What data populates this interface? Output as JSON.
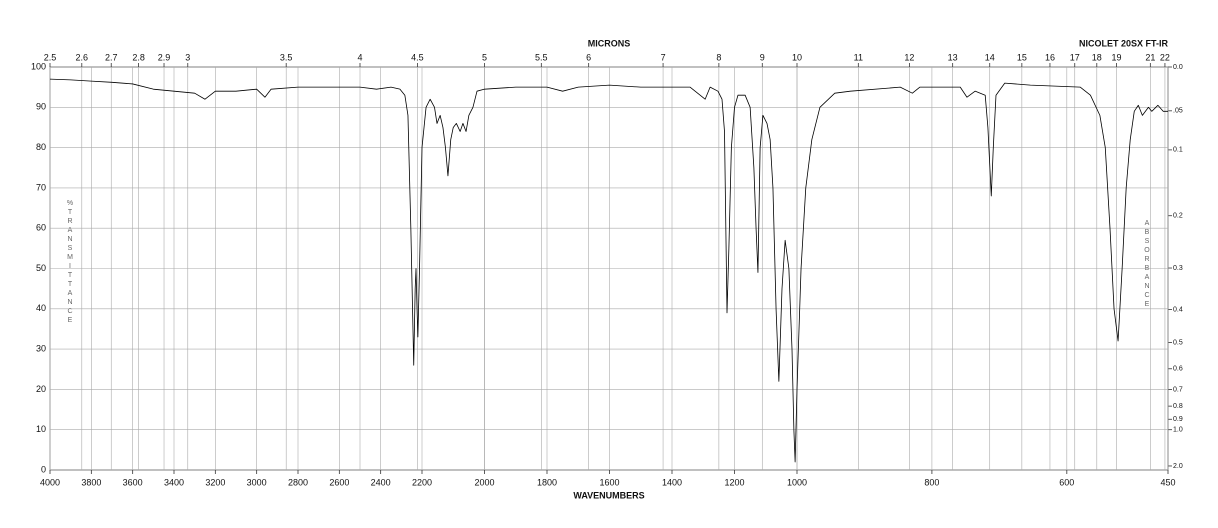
{
  "chart_data": {
    "type": "line",
    "title": "NICOLET 20SX FT-IR",
    "xlabel": "WAVENUMBERS",
    "x2label": "MICRONS",
    "ylabel": "%TRANSMITTANCE",
    "y2label": "ABSORBANCE",
    "xlim": [
      4000,
      450
    ],
    "xbreaks": [
      2200,
      1000
    ],
    "xticks": [
      4000,
      3800,
      3600,
      3400,
      3200,
      3000,
      2800,
      2600,
      2400,
      2200,
      2000,
      1800,
      1600,
      1400,
      1200,
      1000,
      800,
      600,
      450
    ],
    "x2scale": "reciprocal",
    "x2ticks": [
      2.5,
      2.6,
      2.7,
      2.8,
      2.9,
      3,
      3.5,
      4,
      4.5,
      5,
      5.5,
      6,
      7,
      8,
      9,
      10,
      11,
      12,
      13,
      14,
      15,
      16,
      17,
      18,
      19,
      21,
      22
    ],
    "ylim": [
      0,
      100
    ],
    "yticks": [
      0,
      10,
      20,
      30,
      40,
      50,
      60,
      70,
      80,
      90,
      100
    ],
    "y2scale": "absorbance",
    "y2ticks": [
      {
        "value": 0,
        "label": "0.0"
      },
      {
        "value": 0.05,
        "label": ".05"
      },
      0.1,
      0.2,
      0.3,
      0.4,
      0.5,
      0.6,
      0.7,
      0.8,
      0.9,
      {
        "value": 1,
        "label": "1.0"
      },
      {
        "value": 2,
        "label": "2.0"
      }
    ],
    "grid": true,
    "color": "#000000",
    "x": [
      4000,
      3900,
      3800,
      3700,
      3600,
      3500,
      3400,
      3300,
      3250,
      3200,
      3100,
      3000,
      2960,
      2930,
      2800,
      2600,
      2500,
      2420,
      2350,
      2307,
      2283,
      2268,
      2254,
      2240,
      2233,
      2229,
      2224,
      2220,
      2212,
      2200,
      2187,
      2174,
      2160,
      2152,
      2142,
      2133,
      2125,
      2117,
      2108,
      2100,
      2090,
      2078,
      2069,
      2059,
      2050,
      2037,
      2024,
      2000,
      1900,
      1800,
      1750,
      1700,
      1600,
      1500,
      1400,
      1342,
      1294,
      1278,
      1253,
      1240,
      1232,
      1224,
      1218,
      1210,
      1200,
      1189,
      1166,
      1150,
      1138,
      1131,
      1125,
      1118,
      1109,
      1096,
      1086,
      1077,
      1067,
      1058,
      1048,
      1038,
      1026,
      1016,
      1010,
      1006,
      1000,
      994,
      987,
      978,
      966,
      944,
      921,
      847,
      829,
      818,
      758,
      748,
      736,
      721,
      717,
      712,
      709,
      705,
      692,
      654,
      580,
      565,
      551,
      543,
      536,
      530,
      524,
      518,
      512,
      506,
      500,
      494,
      488,
      479,
      474,
      465,
      457,
      450
    ],
    "values": [
      97,
      96.8,
      96.5,
      96.2,
      95.8,
      94.5,
      94,
      93.5,
      92,
      94,
      94,
      94.5,
      92.5,
      94.5,
      95,
      95,
      95,
      94.5,
      95,
      94.5,
      93,
      88,
      60,
      26,
      45,
      50,
      40,
      33,
      50,
      80,
      90,
      92,
      90,
      86,
      88,
      85,
      80,
      73,
      82,
      85,
      86,
      84,
      86,
      84,
      88,
      90,
      94,
      94.5,
      95,
      95,
      94,
      95,
      95.5,
      95,
      95,
      95,
      92,
      95,
      94,
      92,
      84,
      39,
      55,
      80,
      90,
      93,
      93,
      90,
      75,
      60,
      49,
      80,
      88,
      86,
      82,
      70,
      40,
      22,
      45,
      57,
      50,
      30,
      10,
      2,
      20,
      50,
      70,
      82,
      90,
      93.5,
      94,
      95,
      93.5,
      95,
      95,
      92.5,
      94,
      93,
      85,
      68,
      80,
      93,
      96,
      95.5,
      95,
      93,
      88,
      80,
      60,
      40,
      32,
      50,
      70,
      82,
      89,
      90.5,
      88,
      90,
      89,
      90.5,
      89,
      89
    ]
  }
}
